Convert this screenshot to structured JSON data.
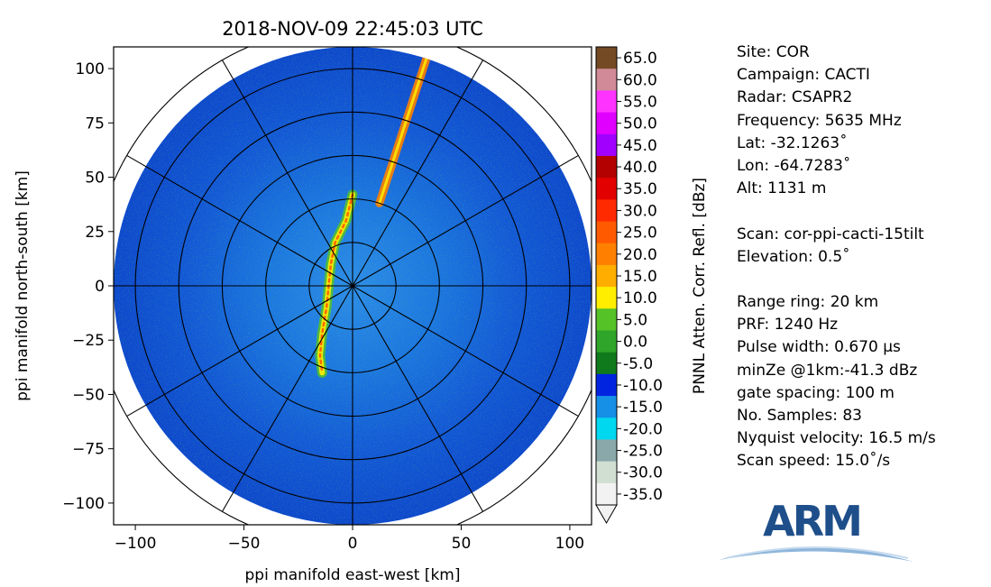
{
  "chart_data": {
    "type": "heatmap",
    "subtype": "radar-ppi",
    "title": "2018-NOV-09 22:45:03 UTC",
    "xlabel": "ppi manifold east-west [km]",
    "ylabel": "ppi manifold north-south [km]",
    "xlim": [
      -110,
      110
    ],
    "ylim": [
      -110,
      110
    ],
    "xticks": [
      -100,
      -50,
      0,
      50,
      100
    ],
    "xtick_labels": [
      "−100",
      "−50",
      "0",
      "50",
      "100"
    ],
    "yticks": [
      100,
      75,
      50,
      25,
      0,
      -25,
      -50,
      -75,
      -100
    ],
    "ytick_labels": [
      "100",
      "75",
      "50",
      "25",
      "0",
      "−25",
      "−50",
      "−75",
      "−100"
    ],
    "max_range_km": 110,
    "range_rings_km": [
      20,
      40,
      60,
      80,
      100,
      120
    ],
    "azimuth_spokes_deg": [
      0,
      30,
      60,
      90,
      120,
      150,
      180,
      210,
      240,
      270,
      300,
      330
    ],
    "colorbar": {
      "label": "PNNL Atten. Corr. Refl. [dBz]",
      "tick_labels": [
        "65.0",
        "60.0",
        "55.0",
        "50.0",
        "45.0",
        "40.0",
        "35.0",
        "30.0",
        "25.0",
        "20.0",
        "15.0",
        "10.0",
        "5.0",
        "0.0",
        "-5.0",
        "-10.0",
        "-15.0",
        "-20.0",
        "-25.0",
        "-30.0",
        "-35.0"
      ],
      "colors": [
        "#734a24",
        "#d08a98",
        "#ff33ff",
        "#e000ff",
        "#a100ff",
        "#b30000",
        "#e30000",
        "#ff2a00",
        "#ff5a00",
        "#ff8000",
        "#ffae00",
        "#ffee00",
        "#55c228",
        "#2fa52a",
        "#0f7a1c",
        "#0024e0",
        "#168fe6",
        "#00d8f0",
        "#8aa7aa",
        "#d0dfd2",
        "#f2f2f2"
      ],
      "extend": "min"
    },
    "features": [
      {
        "name": "radial streak",
        "azimuth_deg": 18,
        "r_km": [
          40,
          110
        ],
        "dbz": 20
      },
      {
        "name": "echo band",
        "points_km": [
          [
            0,
            42
          ],
          [
            -3,
            30
          ],
          [
            -8,
            20
          ],
          [
            -10,
            10
          ],
          [
            -11,
            0
          ],
          [
            -12,
            -10
          ],
          [
            -14,
            -22
          ],
          [
            -15,
            -32
          ],
          [
            -14,
            -40
          ]
        ],
        "dbz": 15
      }
    ]
  },
  "info": {
    "lines": [
      "Site: COR",
      "Campaign: CACTI",
      "Radar: CSAPR2",
      "Frequency: 5635 MHz",
      "Lat: -32.1263˚",
      "Lon: -64.7283˚",
      "Alt: 1131 m",
      "",
      "Scan: cor-ppi-cacti-15tilt",
      "Elevation: 0.5˚",
      "",
      "Range ring: 20 km",
      "PRF: 1240 Hz",
      "Pulse width: 0.670 μs",
      "minZe @1km:-41.3 dBz",
      "gate spacing: 100 m",
      "No. Samples: 83",
      "Nyquist velocity: 16.5 m/s",
      "Scan speed: 15.0˚/s"
    ]
  },
  "logo": {
    "text": "ARM"
  }
}
